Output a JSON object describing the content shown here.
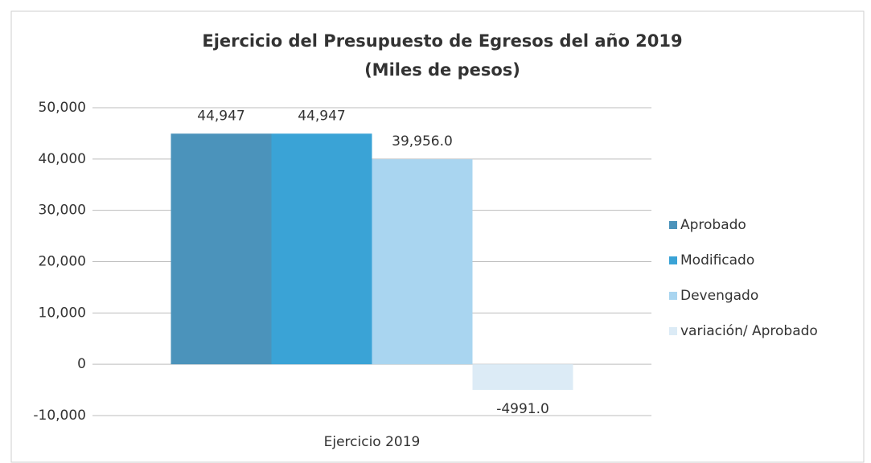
{
  "chart_data": {
    "type": "bar",
    "title": "Ejercicio del Presupuesto de Egresos del año 2019",
    "subtitle": "(Miles de pesos)",
    "categories": [
      "Ejercicio 2019"
    ],
    "series": [
      {
        "name": "Aprobado",
        "color": "#4b93bb",
        "values": [
          44947
        ],
        "value_labels": [
          "44,947"
        ]
      },
      {
        "name": "Modificado",
        "color": "#3aa3d6",
        "values": [
          44947
        ],
        "value_labels": [
          "44,947"
        ]
      },
      {
        "name": "Devengado",
        "color": "#a9d5f0",
        "values": [
          39956
        ],
        "value_labels": [
          "39,956.0"
        ]
      },
      {
        "name": "variación/ Aprobado",
        "color": "#dcebf6",
        "values": [
          -4991
        ],
        "value_labels": [
          "-4991.0"
        ]
      }
    ],
    "ylim": [
      -10000,
      50000
    ],
    "yticks": [
      {
        "value": -10000,
        "label": "-10,000"
      },
      0,
      {
        "value": 10000,
        "label": "10,000"
      },
      {
        "value": 20000,
        "label": "20,000"
      },
      {
        "value": 30000,
        "label": "30,000"
      },
      {
        "value": 40000,
        "label": "40,000"
      },
      {
        "value": 50000,
        "label": "50,000"
      }
    ],
    "grid": true,
    "legend": "right"
  }
}
